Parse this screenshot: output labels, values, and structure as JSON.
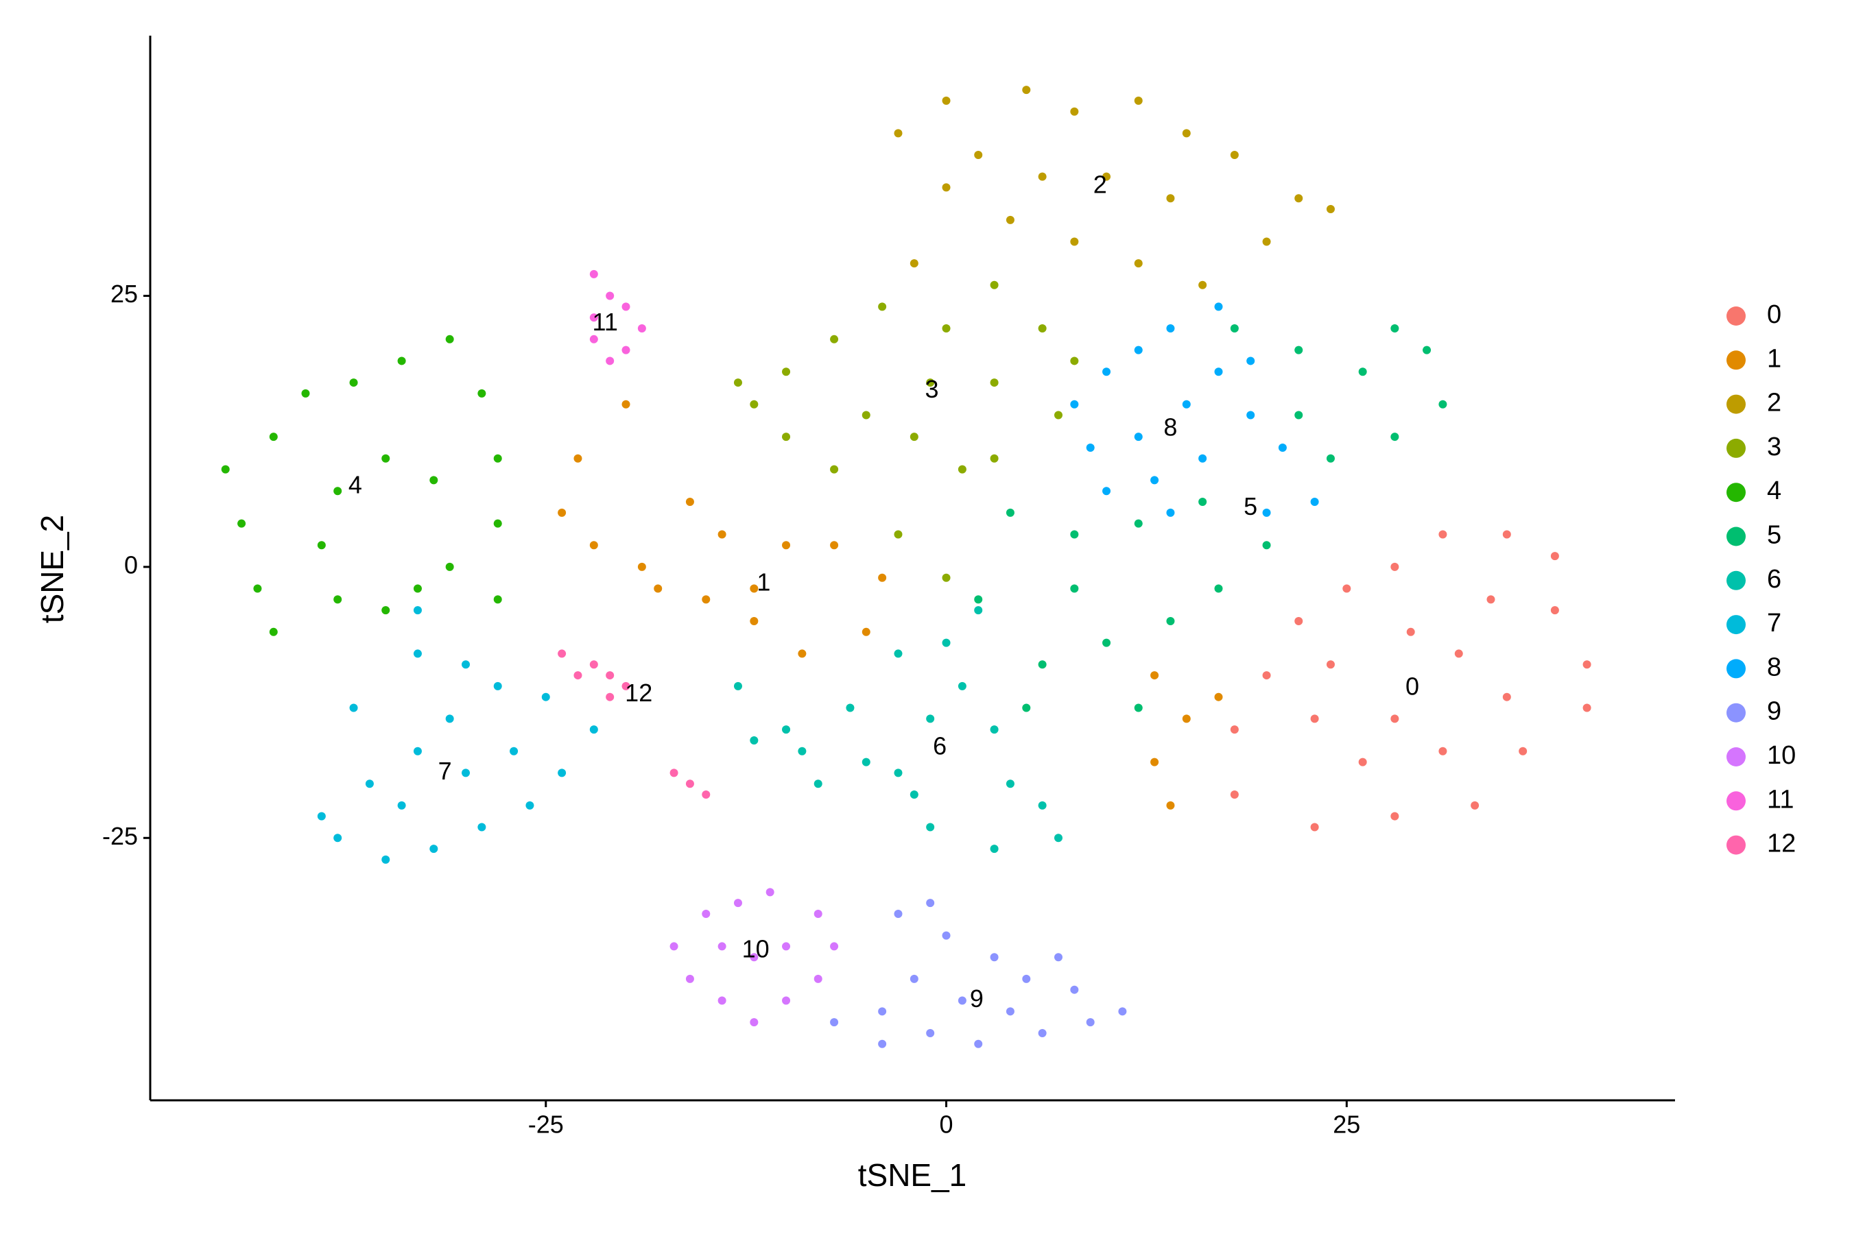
{
  "chart_data": {
    "type": "scatter",
    "xlabel": "tSNE_1",
    "ylabel": "tSNE_2",
    "xlim": [
      -49.7,
      45.5
    ],
    "ylim": [
      -49.2,
      49
    ],
    "xticks": [
      -25,
      0,
      25
    ],
    "yticks": [
      -25,
      0,
      25
    ],
    "legend": "right",
    "series": [
      {
        "name": "0",
        "color": "#F8766D",
        "label_x": 29.1,
        "label_y": -11.2,
        "x": [
          22,
          25,
          28,
          31,
          35,
          38,
          38,
          40,
          40,
          36,
          33,
          28,
          23,
          18,
          18,
          20,
          24,
          28,
          32,
          35,
          26,
          31,
          23,
          29,
          34
        ],
        "y": [
          -5,
          -2,
          0,
          3,
          3,
          1,
          -4,
          -9,
          -13,
          -17,
          -22,
          -23,
          -24,
          -21,
          -15,
          -10,
          -9,
          -14,
          -8,
          -12,
          -18,
          -17,
          -14,
          -6,
          -3
        ]
      },
      {
        "name": "1",
        "color": "#E18A00",
        "label_x": -11.4,
        "label_y": -1.6,
        "x": [
          -20,
          -23,
          -24,
          -22,
          -19,
          -16,
          -14,
          -15,
          -12,
          -9,
          -5,
          -4,
          -7,
          -10,
          -18,
          -12,
          13,
          15,
          13,
          14,
          17
        ],
        "y": [
          15,
          10,
          5,
          2,
          0,
          6,
          3,
          -3,
          -5,
          -8,
          -6,
          -1,
          2,
          2,
          -2,
          -2,
          -10,
          -14,
          -18,
          -22,
          -12
        ]
      },
      {
        "name": "2",
        "color": "#BE9C00",
        "label_x": 9.6,
        "label_y": 35.1,
        "x": [
          -3,
          0,
          2,
          5,
          8,
          12,
          15,
          18,
          22,
          24,
          20,
          16,
          12,
          8,
          4,
          0,
          -2,
          10,
          6,
          14
        ],
        "y": [
          40,
          43,
          38,
          44,
          42,
          43,
          40,
          38,
          34,
          33,
          30,
          26,
          28,
          30,
          32,
          35,
          28,
          36,
          36,
          34
        ]
      },
      {
        "name": "3",
        "color": "#8CAB00",
        "label_x": -0.9,
        "label_y": 16.2,
        "x": [
          -13,
          -10,
          -7,
          -4,
          0,
          3,
          6,
          8,
          7,
          3,
          1,
          -2,
          -5,
          -7,
          -10,
          -12,
          -1,
          3,
          -3,
          0
        ],
        "y": [
          17,
          18,
          21,
          24,
          22,
          26,
          22,
          19,
          14,
          10,
          9,
          12,
          14,
          9,
          12,
          15,
          17,
          17,
          3,
          -1
        ]
      },
      {
        "name": "4",
        "color": "#24B700",
        "label_x": -36.9,
        "label_y": 7.4,
        "x": [
          -45,
          -42,
          -40,
          -37,
          -34,
          -31,
          -29,
          -28,
          -28,
          -31,
          -33,
          -35,
          -38,
          -42,
          -43,
          -44,
          -38,
          -35,
          -32,
          -39,
          -28
        ],
        "y": [
          9,
          12,
          16,
          17,
          19,
          21,
          16,
          10,
          4,
          0,
          -2,
          -4,
          -3,
          -6,
          -2,
          4,
          7,
          10,
          8,
          2,
          -3
        ]
      },
      {
        "name": "5",
        "color": "#00BE70",
        "label_x": 19.0,
        "label_y": 5.4,
        "x": [
          4,
          8,
          12,
          16,
          20,
          17,
          14,
          10,
          6,
          2,
          8,
          22,
          26,
          30,
          31,
          28,
          24,
          22,
          18,
          28,
          12,
          5
        ],
        "y": [
          5,
          3,
          4,
          6,
          2,
          -2,
          -5,
          -7,
          -9,
          -3,
          -2,
          14,
          18,
          20,
          15,
          12,
          10,
          20,
          22,
          22,
          -13,
          -13
        ]
      },
      {
        "name": "6",
        "color": "#00C1AB",
        "label_x": -0.4,
        "label_y": -16.7,
        "x": [
          -13,
          -12,
          -9,
          -6,
          -5,
          -3,
          -1,
          1,
          3,
          4,
          6,
          7,
          3,
          -1,
          -2,
          -8,
          -10,
          -3,
          0,
          2
        ],
        "y": [
          -11,
          -16,
          -17,
          -13,
          -18,
          -19,
          -14,
          -11,
          -15,
          -20,
          -22,
          -25,
          -26,
          -24,
          -21,
          -20,
          -15,
          -8,
          -7,
          -4
        ]
      },
      {
        "name": "7",
        "color": "#00BBDA",
        "label_x": -31.3,
        "label_y": -19.0,
        "x": [
          -33,
          -33,
          -30,
          -28,
          -25,
          -22,
          -24,
          -26,
          -29,
          -32,
          -35,
          -38,
          -39,
          -36,
          -37,
          -33,
          -30,
          -27,
          -34,
          -31
        ],
        "y": [
          -4,
          -8,
          -9,
          -11,
          -12,
          -15,
          -19,
          -22,
          -24,
          -26,
          -27,
          -25,
          -23,
          -20,
          -13,
          -17,
          -19,
          -17,
          -22,
          -14
        ]
      },
      {
        "name": "8",
        "color": "#00ACFC",
        "label_x": 14.0,
        "label_y": 12.7,
        "x": [
          8,
          10,
          12,
          14,
          17,
          19,
          19,
          16,
          13,
          10,
          12,
          15,
          9,
          21,
          23,
          20,
          17,
          14
        ],
        "y": [
          15,
          18,
          20,
          22,
          24,
          19,
          14,
          10,
          8,
          7,
          12,
          15,
          11,
          11,
          6,
          5,
          18,
          5
        ]
      },
      {
        "name": "9",
        "color": "#8B93FF",
        "label_x": 1.9,
        "label_y": -40.0,
        "x": [
          -7,
          -4,
          -2,
          0,
          3,
          5,
          8,
          11,
          9,
          6,
          2,
          -1,
          -4,
          1,
          4,
          -3,
          -1,
          7
        ],
        "y": [
          -42,
          -41,
          -38,
          -34,
          -36,
          -38,
          -39,
          -41,
          -42,
          -43,
          -44,
          -43,
          -44,
          -40,
          -41,
          -32,
          -31,
          -36
        ]
      },
      {
        "name": "10",
        "color": "#D575FE",
        "label_x": -11.9,
        "label_y": -35.4,
        "x": [
          -17,
          -16,
          -14,
          -12,
          -10,
          -8,
          -7,
          -8,
          -11,
          -13,
          -15,
          -12,
          -10,
          -14
        ],
        "y": [
          -35,
          -38,
          -40,
          -42,
          -40,
          -38,
          -35,
          -32,
          -30,
          -31,
          -32,
          -36,
          -35,
          -35
        ]
      },
      {
        "name": "11",
        "color": "#F962DD",
        "label_x": -21.3,
        "label_y": 22.4,
        "x": [
          -22,
          -21,
          -22,
          -22,
          -20,
          -19,
          -21,
          -20
        ],
        "y": [
          27,
          25,
          23,
          21,
          20,
          22,
          19,
          24
        ]
      },
      {
        "name": "12",
        "color": "#FF65AC",
        "label_x": -19.2,
        "label_y": -11.8,
        "x": [
          -24,
          -22,
          -21,
          -20,
          -23,
          -17,
          -16,
          -15,
          -21
        ],
        "y": [
          -8,
          -9,
          -10,
          -11,
          -10,
          -19,
          -20,
          -21,
          -12
        ]
      }
    ]
  }
}
